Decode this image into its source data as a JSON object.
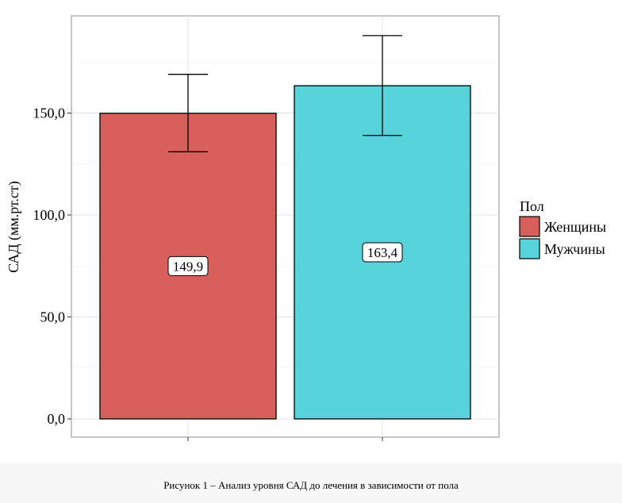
{
  "chart_data": {
    "type": "bar",
    "categories": [
      "Женщины",
      "Мужчины"
    ],
    "values": [
      149.9,
      163.4
    ],
    "value_labels": [
      "149,9",
      "163,4"
    ],
    "error_bars": [
      {
        "low": 131,
        "high": 169
      },
      {
        "low": 139,
        "high": 188
      }
    ],
    "colors": [
      "#d9605a",
      "#57d3db"
    ],
    "ylabel": "САД (мм.рт.ст)",
    "xlabel": "",
    "yticks": [
      0,
      50,
      100,
      150
    ],
    "ytick_labels": [
      "0,0",
      "50,0",
      "100,0",
      "150,0"
    ],
    "ylim": [
      0,
      190
    ],
    "grid": true,
    "legend": {
      "title": "Пол",
      "placement": "right",
      "entries": [
        "Женщины",
        "Мужчины"
      ]
    }
  },
  "caption": "Рисунок 1 – Анализ уровня САД до лечения в зависимости от пола"
}
